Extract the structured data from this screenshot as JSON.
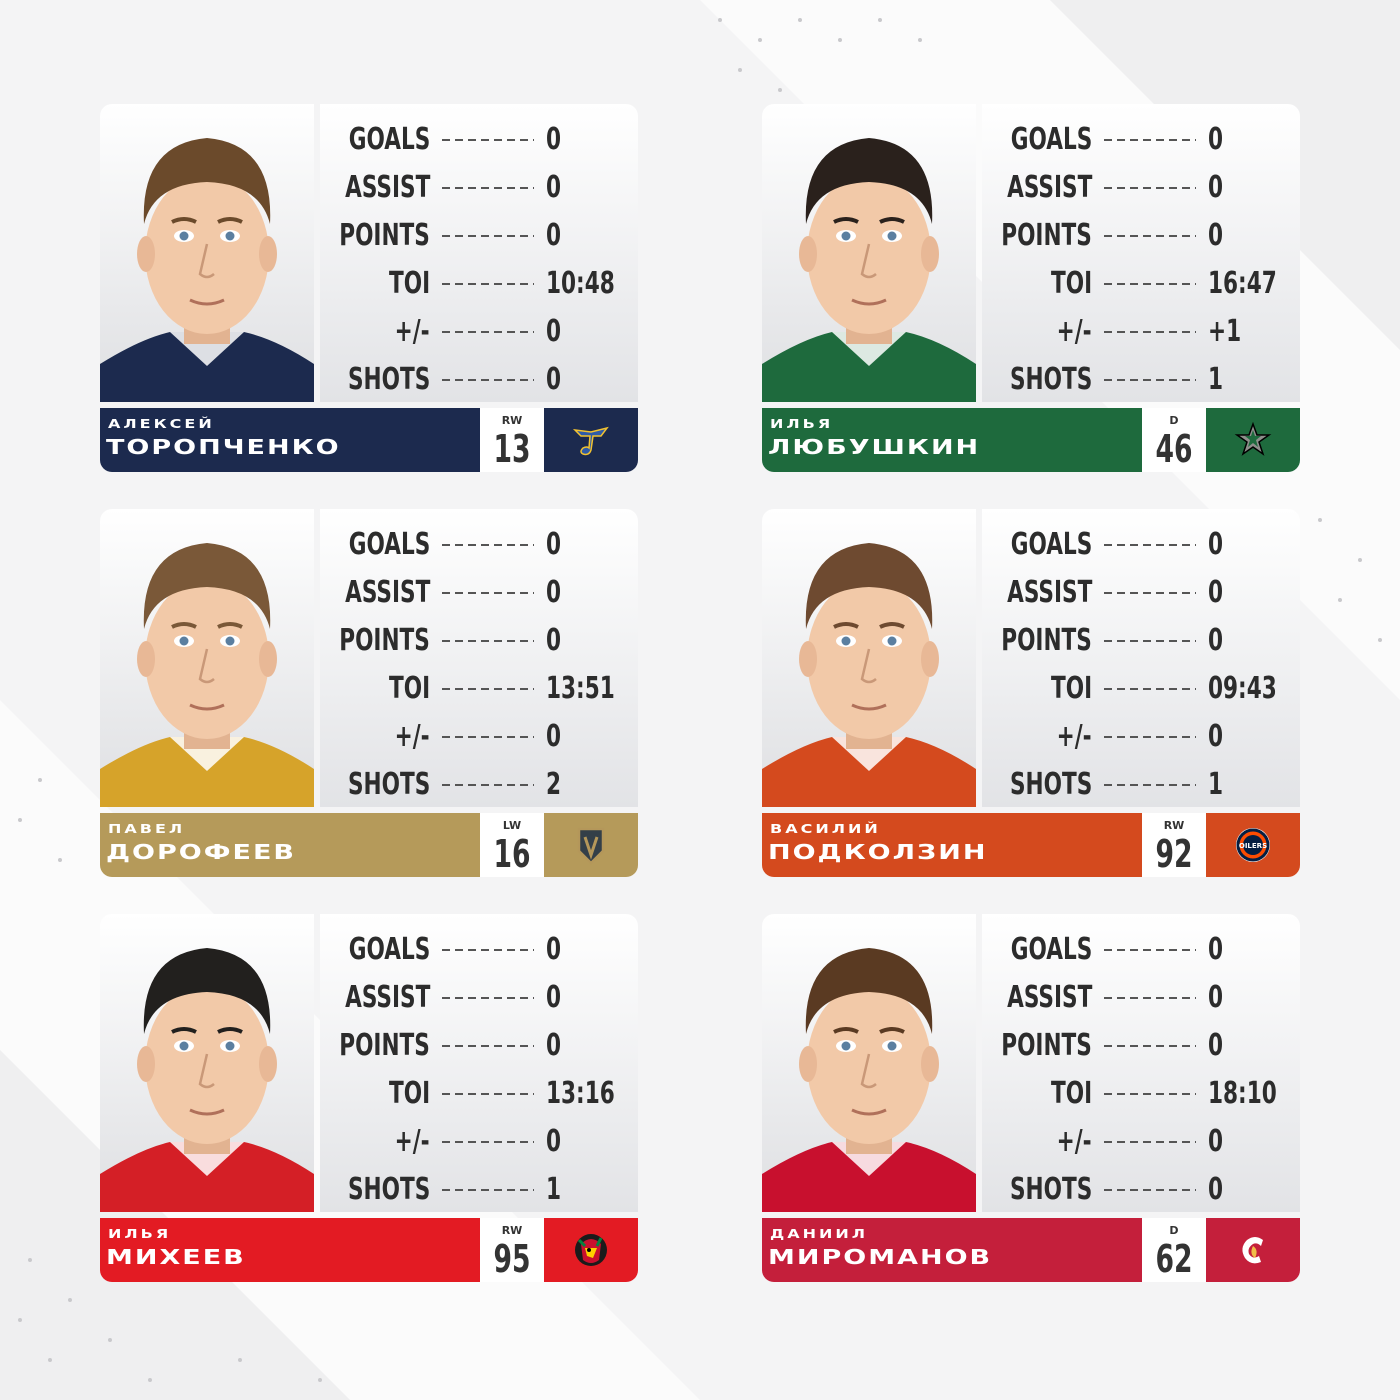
{
  "stat_labels": [
    "GOALS",
    "ASSIST",
    "POINTS",
    "TOI",
    "+/-",
    "SHOTS"
  ],
  "players": [
    {
      "first_name": "Алексей",
      "last_name": "Торопченко",
      "position": "RW",
      "number": "13",
      "team_logo": "blues-note-icon",
      "bar_color": "#1c2a4e",
      "logo_bg": "#1c2a4e",
      "jersey_color": "#1c2a4e",
      "hair_color": "#6b4a2b",
      "stats": [
        "0",
        "0",
        "0",
        "10:48",
        "0",
        "0"
      ]
    },
    {
      "first_name": "Илья",
      "last_name": "Любушкин",
      "position": "D",
      "number": "46",
      "team_logo": "stars-icon",
      "bar_color": "#1e6a3d",
      "logo_bg": "#1e6a3d",
      "jersey_color": "#1e6a3d",
      "hair_color": "#2a211c",
      "stats": [
        "0",
        "0",
        "0",
        "16:47",
        "+1",
        "1"
      ]
    },
    {
      "first_name": "Павел",
      "last_name": "Дорофеев",
      "position": "LW",
      "number": "16",
      "team_logo": "golden-knights-helmet-icon",
      "bar_color": "#b59a5a",
      "logo_bg": "#b59a5a",
      "jersey_color": "#d6a32a",
      "hair_color": "#7a5838",
      "stats": [
        "0",
        "0",
        "0",
        "13:51",
        "0",
        "2"
      ]
    },
    {
      "first_name": "Василий",
      "last_name": "Подколзин",
      "position": "RW",
      "number": "92",
      "team_logo": "oilers-drop-icon",
      "bar_color": "#d44a1e",
      "logo_bg": "#d44a1e",
      "jersey_color": "#d44a1e",
      "hair_color": "#6e4a30",
      "stats": [
        "0",
        "0",
        "0",
        "09:43",
        "0",
        "1"
      ]
    },
    {
      "first_name": "Илья",
      "last_name": "Михеев",
      "position": "RW",
      "number": "95",
      "team_logo": "blackhawks-head-icon",
      "bar_color": "#e31b23",
      "logo_bg": "#e31b23",
      "jersey_color": "#d41f26",
      "hair_color": "#22201e",
      "stats": [
        "0",
        "0",
        "0",
        "13:16",
        "0",
        "1"
      ]
    },
    {
      "first_name": "Даниил",
      "last_name": "Мироманов",
      "position": "D",
      "number": "62",
      "team_logo": "flames-c-icon",
      "bar_color": "#c41f3b",
      "logo_bg": "#c41f3b",
      "jersey_color": "#c8102e",
      "hair_color": "#5a3a22",
      "stats": [
        "0",
        "0",
        "0",
        "18:10",
        "0",
        "0"
      ]
    }
  ]
}
